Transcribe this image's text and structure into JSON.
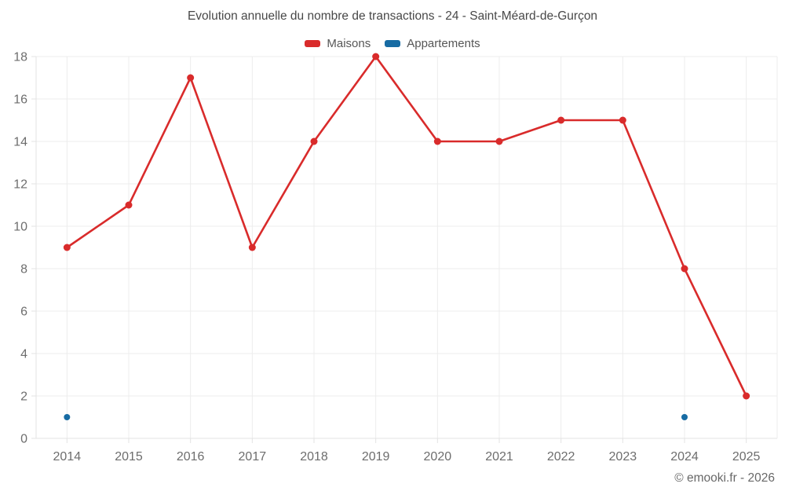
{
  "chart_data": {
    "type": "line",
    "title": "Evolution annuelle du nombre de transactions - 24 - Saint-Méard-de-Gurçon",
    "categories": [
      "2014",
      "2015",
      "2016",
      "2017",
      "2018",
      "2019",
      "2020",
      "2021",
      "2022",
      "2023",
      "2024",
      "2025"
    ],
    "series": [
      {
        "name": "Maisons",
        "color": "#d92b2b",
        "draw": "line+points",
        "values": [
          9,
          11,
          17,
          9,
          14,
          18,
          14,
          14,
          15,
          15,
          8,
          2
        ]
      },
      {
        "name": "Appartements",
        "color": "#176ba3",
        "draw": "points",
        "values": [
          1,
          null,
          null,
          null,
          null,
          null,
          null,
          null,
          null,
          null,
          1,
          null
        ]
      }
    ],
    "xlabel": "",
    "ylabel": "",
    "ylim": [
      0,
      18
    ],
    "ytick_step": 2,
    "grid": true,
    "grid_color": "#ececec",
    "axis_border_color": "#e3e3e3",
    "tick_label_color": "#6d6d6d",
    "legend_position": "top"
  },
  "footer": {
    "copyright": "© emooki.fr - 2026"
  }
}
